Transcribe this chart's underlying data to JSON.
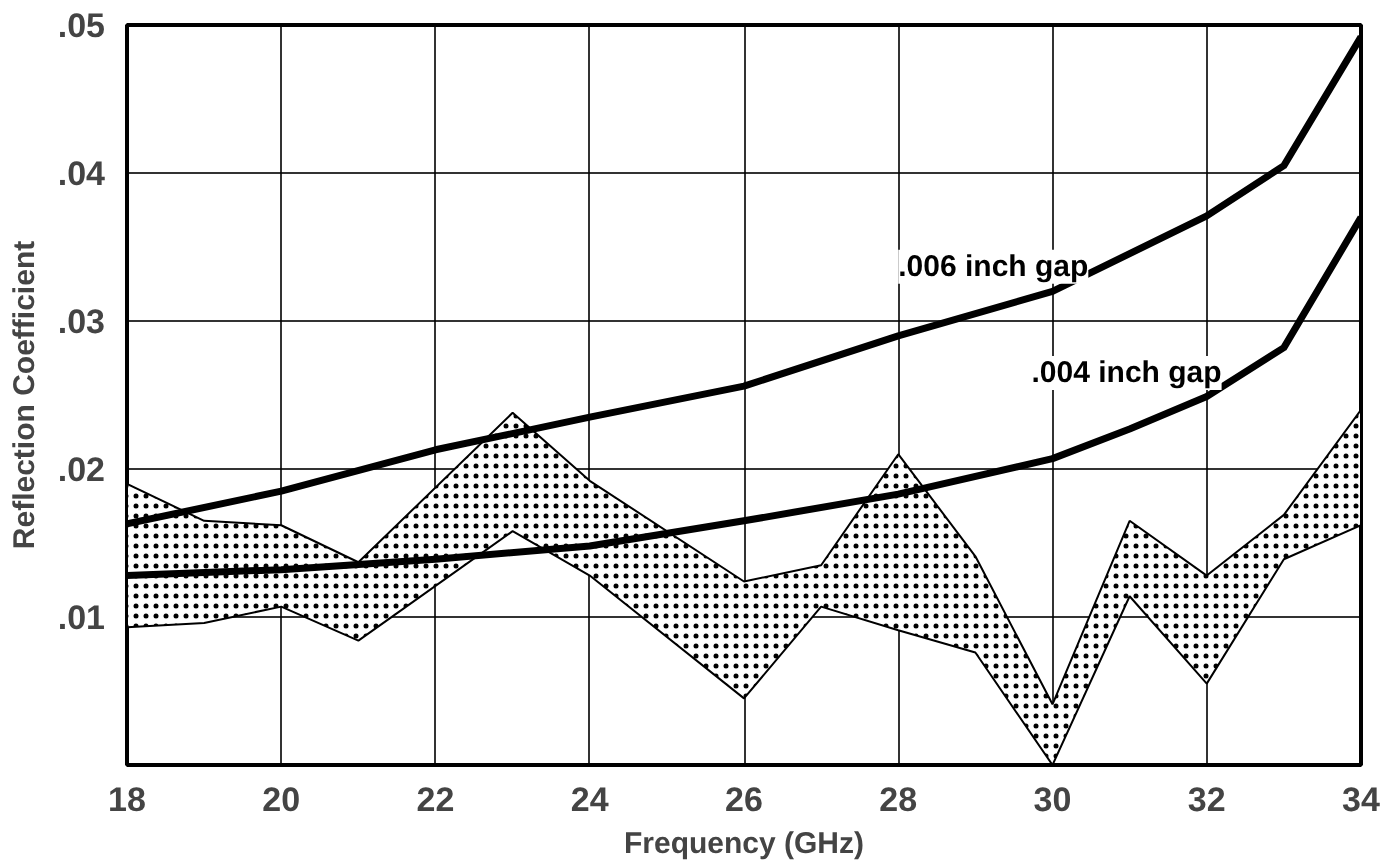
{
  "chart_data": {
    "type": "line",
    "xlabel": "Frequency (GHz)",
    "ylabel": "Reflection Coefficient",
    "xlim": [
      18,
      34
    ],
    "xticks": [
      18,
      20,
      22,
      24,
      26,
      28,
      30,
      32,
      34
    ],
    "ylim": [
      0,
      0.05
    ],
    "yticks": [
      {
        "value": 0,
        "label": null
      },
      {
        "value": 0.01,
        "label": ".01"
      },
      {
        "value": 0.02,
        "label": ".02"
      },
      {
        "value": 0.03,
        "label": ".03"
      },
      {
        "value": 0.04,
        "label": ".04"
      },
      {
        "value": 0.05,
        "label": ".05"
      }
    ],
    "grid": true,
    "series": [
      {
        "type": "line",
        "color": "#000000",
        "x": [
          18,
          19,
          20,
          21,
          23,
          24,
          26,
          27,
          28,
          29,
          30,
          31,
          32,
          33,
          34
        ],
        "values": [
          null,
          null,
          null,
          null,
          null,
          null,
          null,
          null,
          null,
          null,
          null,
          null,
          null,
          null,
          null
        ],
        "upper": [
          0.019,
          0.0165,
          0.0162,
          0.0137,
          0.0238,
          0.0192,
          0.0124,
          0.0135,
          0.021,
          0.0141,
          0.0041,
          0.0165,
          0.0128,
          0.0169,
          0.024
        ],
        "lower": [
          0.0093,
          0.0096,
          0.0107,
          0.0084,
          0.0158,
          0.0128,
          0.0045,
          0.0107,
          0.0091,
          0.0076,
          0.0,
          0.0114,
          0.0055,
          0.0139,
          0.0162
        ]
      },
      {
        "name": ".006 inch gap",
        "color": "#000000",
        "x": [
          18,
          20,
          22,
          24,
          26,
          28,
          30,
          32,
          33,
          34
        ],
        "values": [
          0.0163,
          0.0185,
          0.0213,
          0.0235,
          0.0256,
          0.029,
          0.032,
          0.0371,
          0.0405,
          0.0492
        ]
      },
      {
        "name": ".004 inch gap",
        "color": "#000000",
        "x": [
          18,
          20,
          22,
          24,
          26,
          28,
          30,
          31,
          32,
          33,
          34
        ],
        "values": [
          0.0128,
          0.0132,
          0.0139,
          0.0148,
          0.0165,
          0.0183,
          0.0207,
          0.0227,
          0.0249,
          0.0282,
          0.037
        ]
      }
    ]
  }
}
